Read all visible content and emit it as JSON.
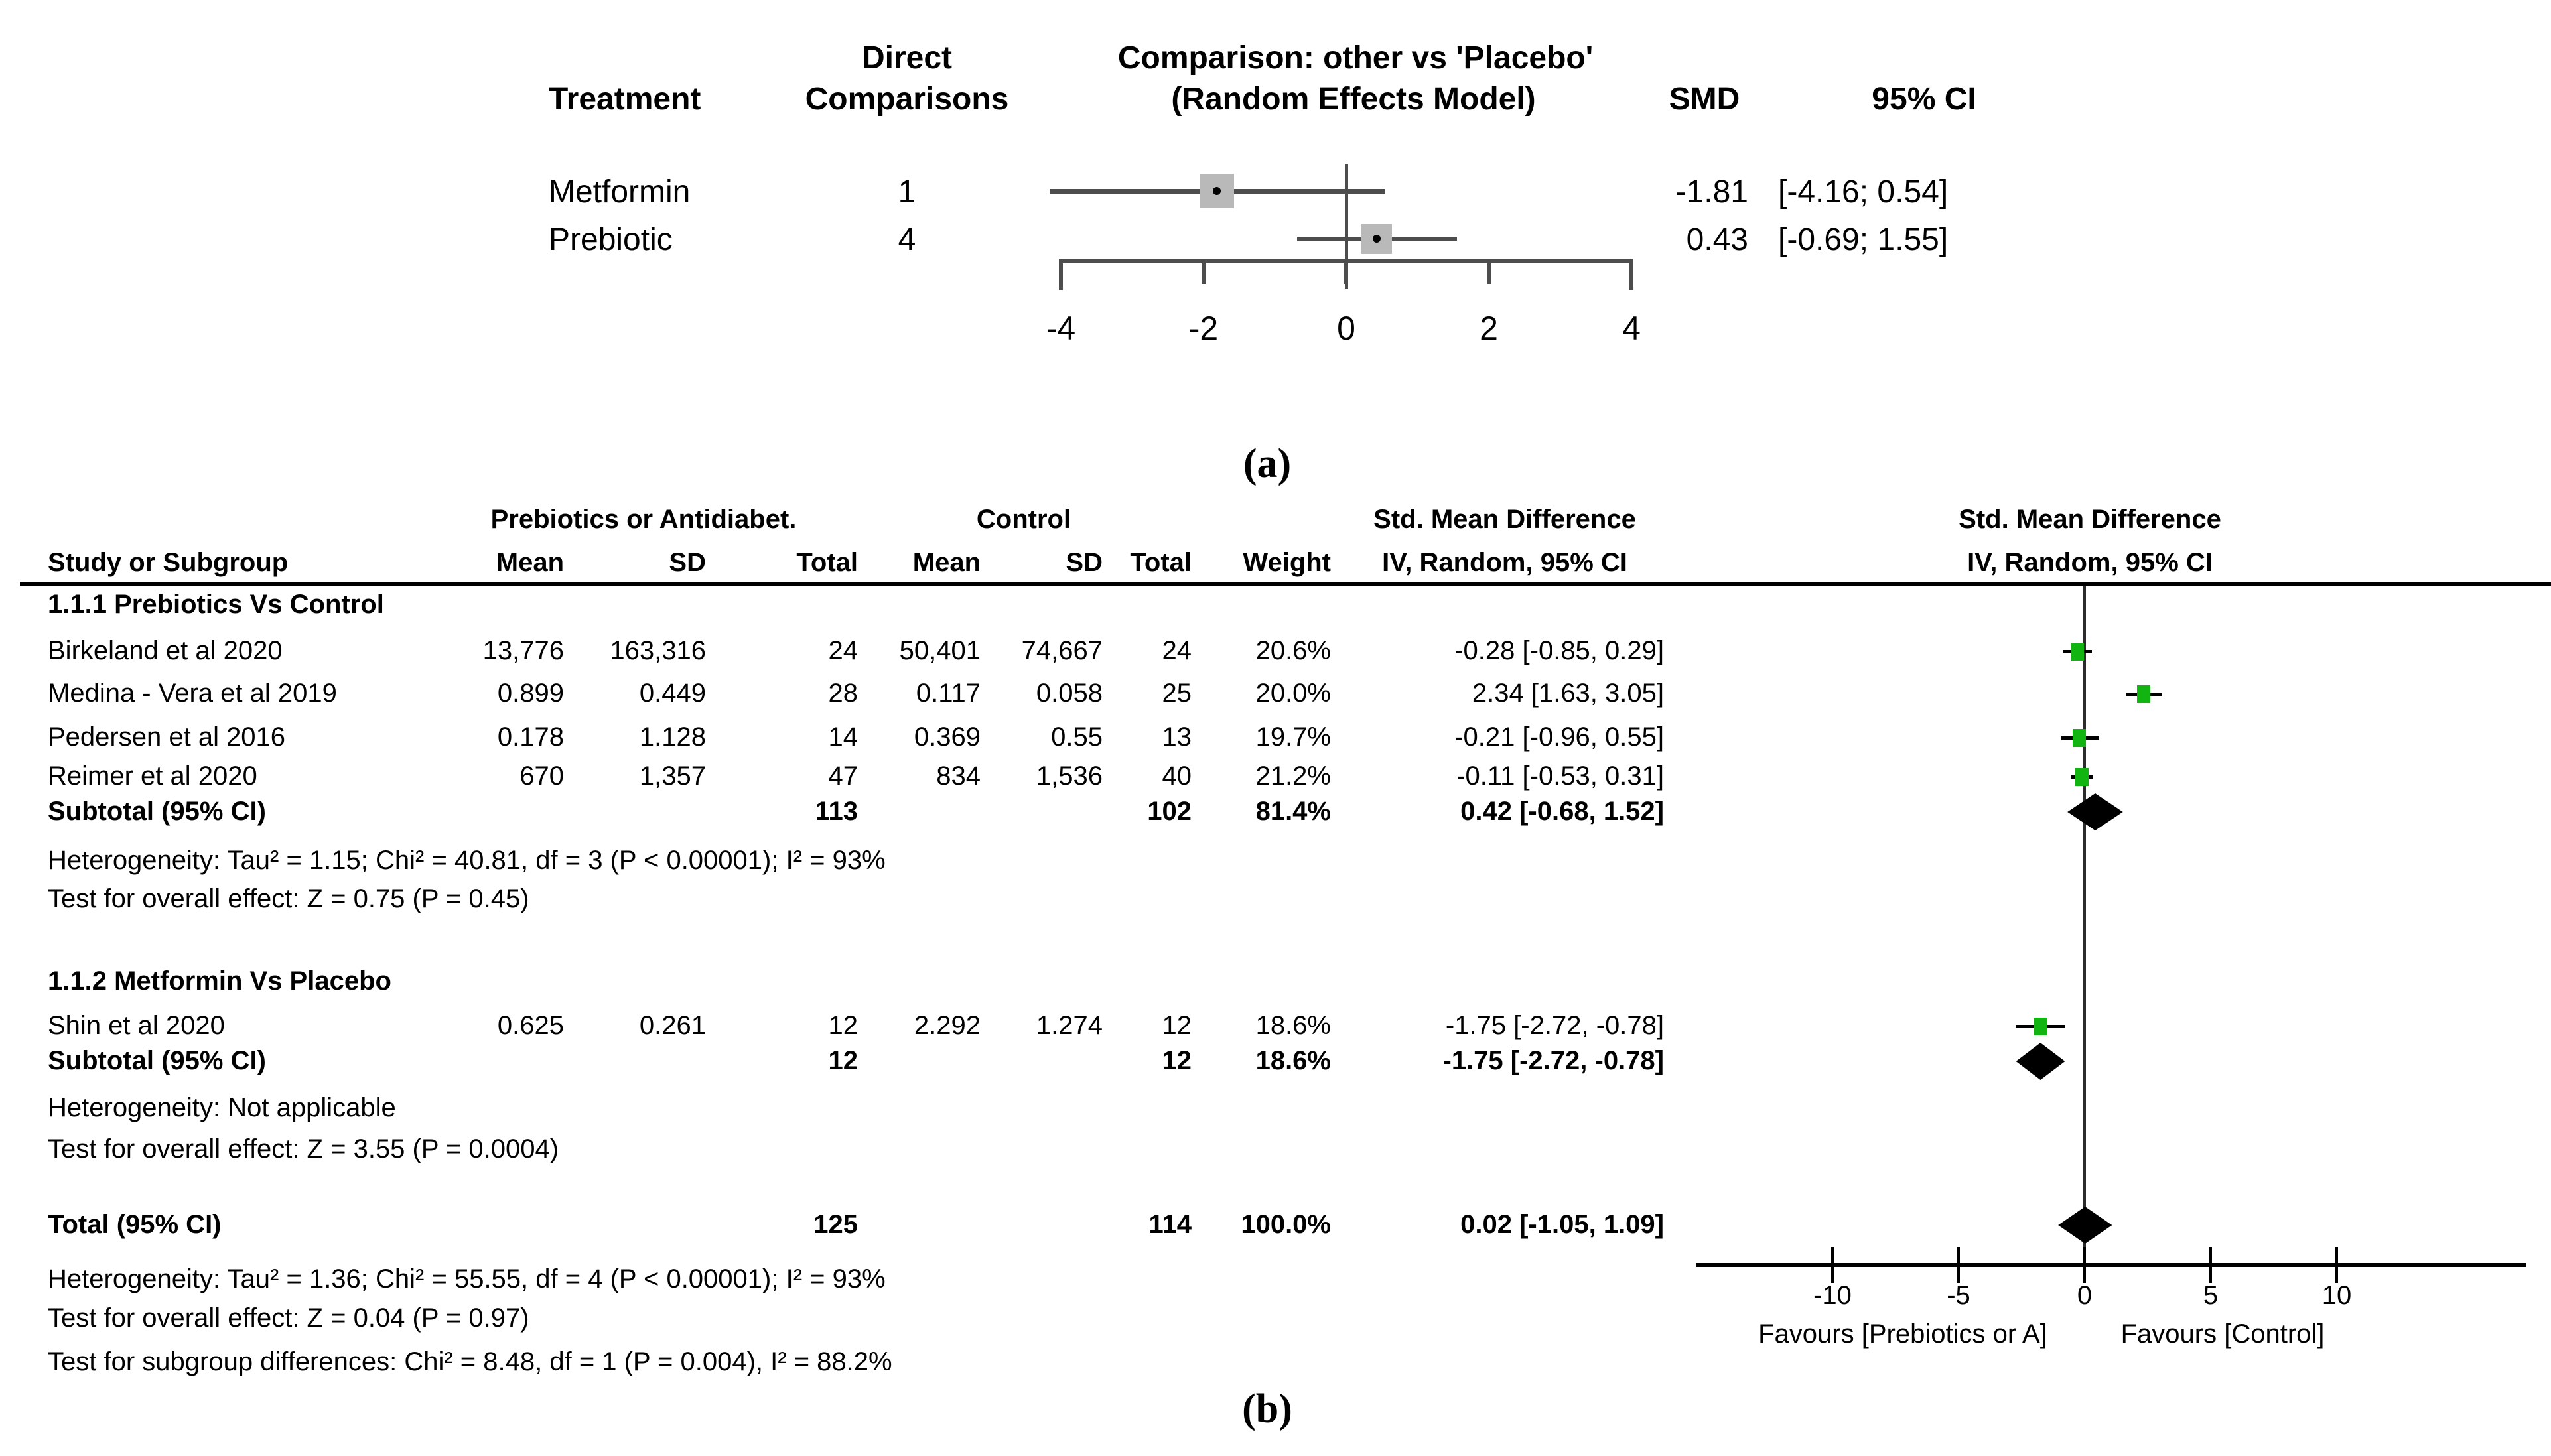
{
  "panel_a": {
    "caption": "(a)",
    "header": {
      "direct": "Direct",
      "treatment": "Treatment",
      "comparisons": "Comparisons",
      "title_line1": "Comparison: other vs 'Placebo'",
      "title_line2": "(Random Effects Model)",
      "smd": "SMD",
      "ci": "95% CI"
    },
    "rows": [
      {
        "treatment": "Metformin",
        "comparisons": "1",
        "smd": "-1.81",
        "ci": "[-4.16; 0.54]"
      },
      {
        "treatment": "Prebiotic",
        "comparisons": "4",
        "smd": "0.43",
        "ci": "[-0.69; 1.55]"
      }
    ]
  },
  "panel_b": {
    "caption": "(b)",
    "headers": {
      "group_experimental": "Prebiotics or Antidiabet.",
      "group_control": "Control",
      "study": "Study or Subgroup",
      "mean": "Mean",
      "sd": "SD",
      "total": "Total",
      "weight": "Weight",
      "smd_col_line1": "Std. Mean Difference",
      "smd_col_line2": "IV, Random, 95% CI",
      "plot_line1": "Std. Mean Difference",
      "plot_line2": "IV, Random, 95% CI"
    },
    "subgroup1_title": "1.1.1 Prebiotics Vs Control",
    "studies1": [
      {
        "study": "Birkeland et al 2020",
        "mean1": "13,776",
        "sd1": "163,316",
        "total1": "24",
        "mean2": "50,401",
        "sd2": "74,667",
        "total2": "24",
        "weight": "20.6%",
        "smd_ci": "-0.28 [-0.85, 0.29]"
      },
      {
        "study": "Medina - Vera et al 2019",
        "mean1": "0.899",
        "sd1": "0.449",
        "total1": "28",
        "mean2": "0.117",
        "sd2": "0.058",
        "total2": "25",
        "weight": "20.0%",
        "smd_ci": "2.34 [1.63, 3.05]"
      },
      {
        "study": "Pedersen et al 2016",
        "mean1": "0.178",
        "sd1": "1.128",
        "total1": "14",
        "mean2": "0.369",
        "sd2": "0.55",
        "total2": "13",
        "weight": "19.7%",
        "smd_ci": "-0.21 [-0.96, 0.55]"
      },
      {
        "study": "Reimer et al 2020",
        "mean1": "670",
        "sd1": "1,357",
        "total1": "47",
        "mean2": "834",
        "sd2": "1,536",
        "total2": "40",
        "weight": "21.2%",
        "smd_ci": "-0.11 [-0.53, 0.31]"
      }
    ],
    "subtotal1": {
      "label": "Subtotal (95% CI)",
      "total1": "113",
      "total2": "102",
      "weight": "81.4%",
      "smd_ci": "0.42 [-0.68, 1.52]"
    },
    "heterogeneity1": "Heterogeneity: Tau² = 1.15; Chi² = 40.81, df = 3 (P < 0.00001); I² = 93%",
    "overall_effect1": "Test for overall effect: Z = 0.75 (P = 0.45)",
    "subgroup2_title": "1.1.2 Metformin Vs Placebo",
    "studies2": [
      {
        "study": "Shin et al 2020",
        "mean1": "0.625",
        "sd1": "0.261",
        "total1": "12",
        "mean2": "2.292",
        "sd2": "1.274",
        "total2": "12",
        "weight": "18.6%",
        "smd_ci": "-1.75 [-2.72, -0.78]"
      }
    ],
    "subtotal2": {
      "label": "Subtotal (95% CI)",
      "total1": "12",
      "total2": "12",
      "weight": "18.6%",
      "smd_ci": "-1.75 [-2.72, -0.78]"
    },
    "heterogeneity2": "Heterogeneity: Not applicable",
    "overall_effect2": "Test for overall effect: Z = 3.55 (P = 0.0004)",
    "total": {
      "label": "Total (95% CI)",
      "total1": "125",
      "total2": "114",
      "weight": "100.0%",
      "smd_ci": "0.02 [-1.05, 1.09]"
    },
    "heterogeneity_total": "Heterogeneity: Tau² = 1.36; Chi² = 55.55, df = 4 (P < 0.00001); I² = 93%",
    "overall_effect_total": "Test for overall effect: Z = 0.04 (P = 0.97)",
    "subgroup_differences": "Test for subgroup differences: Chi² = 8.48, df = 1 (P = 0.004), I² = 88.2%",
    "favours_left": "Favours [Prebiotics or A]",
    "favours_right": "Favours [Control]"
  },
  "colors": {
    "marker_green": "#12b412",
    "gray_square": "#b9b9b9",
    "line_gray": "#4d4d4d",
    "black": "#000000"
  },
  "chart_data": [
    {
      "type": "forest",
      "panel": "a",
      "title": "Direct Comparison: other vs 'Placebo' (Random Effects Model)",
      "xlabel": "SMD",
      "xticks": [
        -4,
        -2,
        0,
        2,
        4
      ],
      "xlim": [
        -4,
        4
      ],
      "points": [
        {
          "label": "Metformin",
          "direct_comparisons": 1,
          "est": -1.81,
          "lo": -4.16,
          "hi": 0.54
        },
        {
          "label": "Prebiotic",
          "direct_comparisons": 4,
          "est": 0.43,
          "lo": -0.69,
          "hi": 1.55
        }
      ]
    },
    {
      "type": "forest",
      "panel": "b",
      "title": "Std. Mean Difference, IV, Random, 95% CI",
      "xticks": [
        -10,
        -5,
        0,
        5,
        10
      ],
      "xlim": [
        -15,
        17
      ],
      "studies": [
        {
          "label": "Birkeland et al 2020",
          "est": -0.28,
          "lo": -0.85,
          "hi": 0.29
        },
        {
          "label": "Medina - Vera et al 2019",
          "est": 2.34,
          "lo": 1.63,
          "hi": 3.05
        },
        {
          "label": "Pedersen et al 2016",
          "est": -0.21,
          "lo": -0.96,
          "hi": 0.55
        },
        {
          "label": "Reimer et al 2020",
          "est": -0.11,
          "lo": -0.53,
          "hi": 0.31
        },
        {
          "label": "Shin et al 2020",
          "est": -1.75,
          "lo": -2.72,
          "hi": -0.78
        }
      ],
      "diamonds": [
        {
          "label": "Subtotal Prebiotics Vs Control",
          "est": 0.42,
          "lo": -0.68,
          "hi": 1.52
        },
        {
          "label": "Subtotal Metformin Vs Placebo",
          "est": -1.75,
          "lo": -2.72,
          "hi": -0.78
        },
        {
          "label": "Total",
          "est": 0.02,
          "lo": -1.05,
          "hi": 1.09
        }
      ]
    }
  ]
}
